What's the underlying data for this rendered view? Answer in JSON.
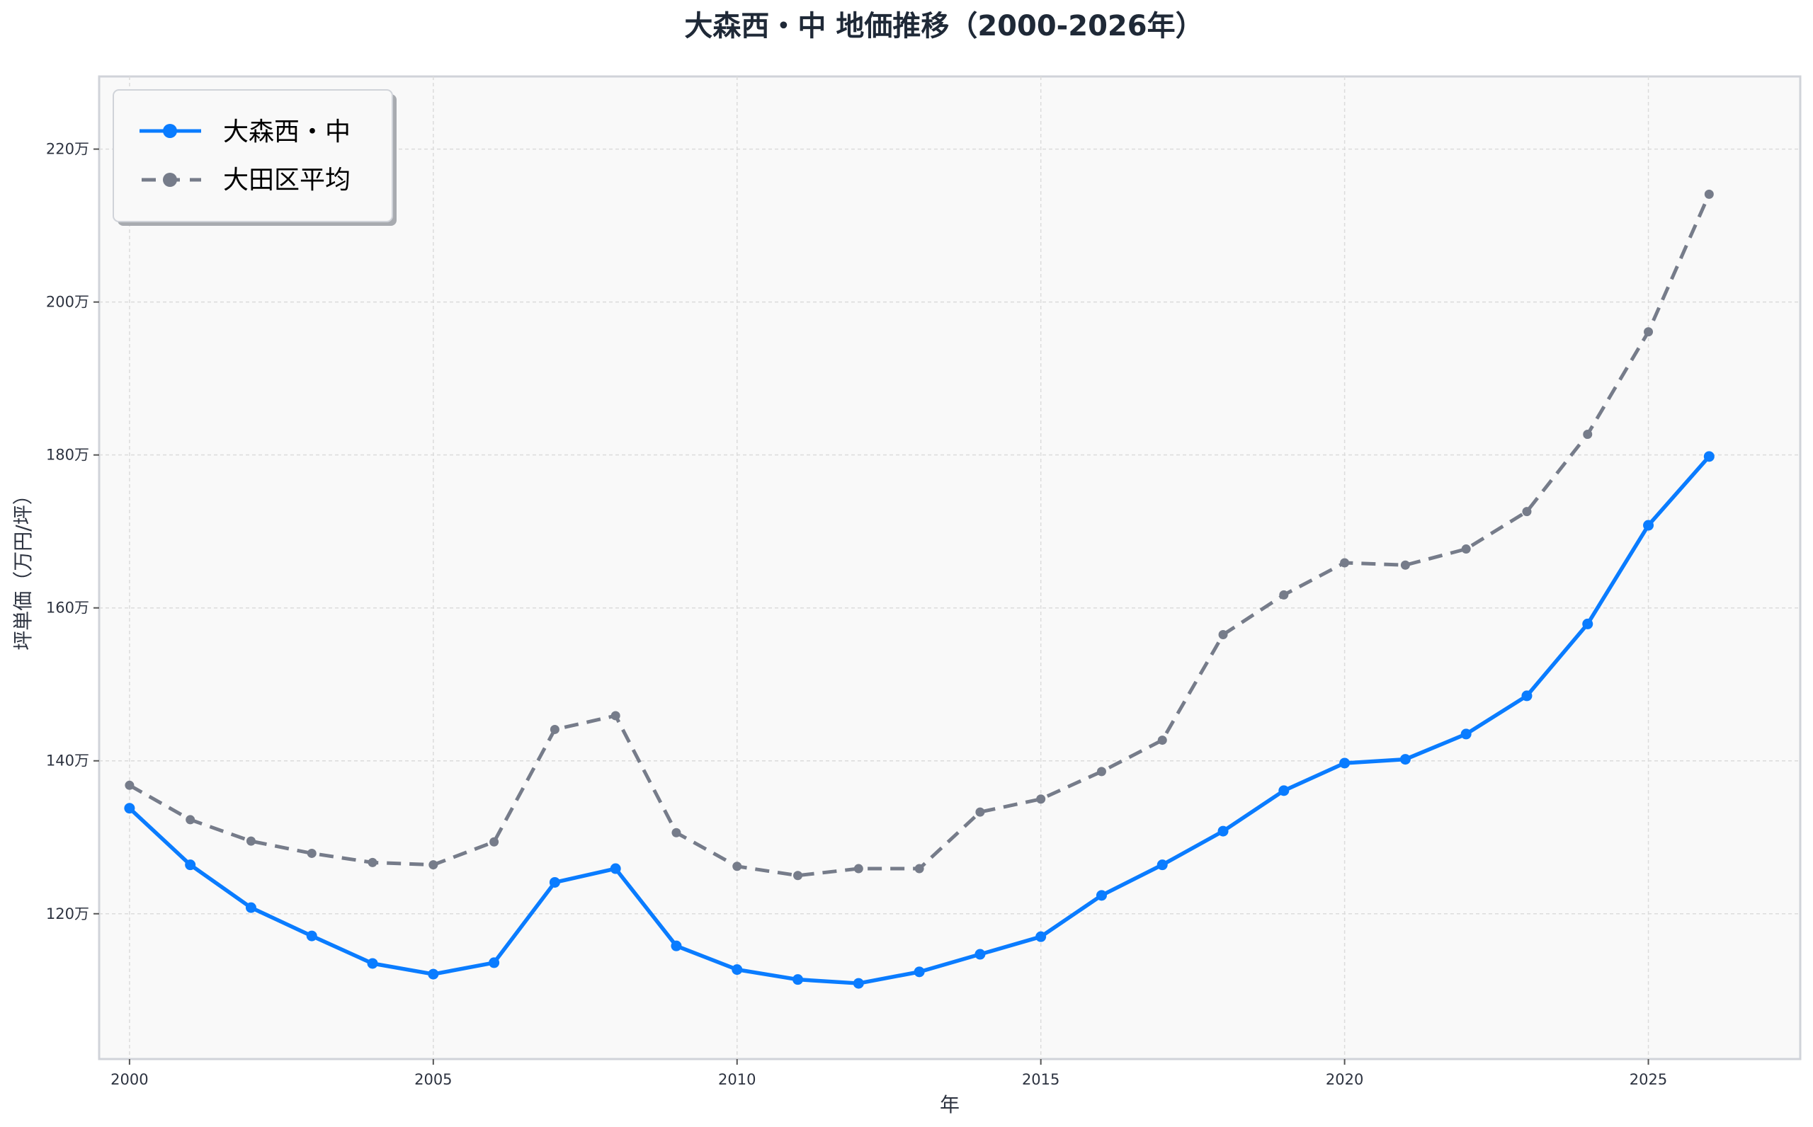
{
  "chart_data": {
    "type": "line",
    "title": "大森西・中 地価推移（2000-2026年）",
    "xlabel": "年",
    "ylabel": "坪単価（万円/坪）",
    "xlim": [
      1999.5,
      2027.5
    ],
    "ylim": [
      101,
      229.5
    ],
    "xticks": [
      2000,
      2005,
      2010,
      2015,
      2020,
      2025
    ],
    "xtick_labels": [
      "2000",
      "2005",
      "2010",
      "2015",
      "2020",
      "2025"
    ],
    "yticks": [
      120,
      140,
      160,
      180,
      200,
      220
    ],
    "ytick_labels": [
      "120万",
      "140万",
      "160万",
      "180万",
      "200万",
      "220万"
    ],
    "grid": true,
    "legend_position": "top-left",
    "background": "#f9f9f9",
    "x": [
      2000,
      2001,
      2002,
      2003,
      2004,
      2005,
      2006,
      2007,
      2008,
      2009,
      2010,
      2011,
      2012,
      2013,
      2014,
      2015,
      2016,
      2017,
      2018,
      2019,
      2020,
      2021,
      2022,
      2023,
      2024,
      2025,
      2026
    ],
    "series": [
      {
        "name": "大森西・中",
        "color": "#0a7cff",
        "style": "solid",
        "values": [
          133.8,
          126.4,
          120.8,
          117.1,
          113.5,
          112.1,
          113.6,
          124.1,
          125.9,
          115.8,
          112.7,
          111.4,
          110.9,
          112.4,
          114.7,
          117.0,
          122.4,
          126.4,
          130.8,
          136.1,
          139.7,
          140.2,
          143.5,
          148.5,
          157.9,
          170.8,
          179.8
        ]
      },
      {
        "name": "大田区平均",
        "color": "#767c8a",
        "style": "dashed",
        "values": [
          136.8,
          132.3,
          129.5,
          127.9,
          126.7,
          126.4,
          129.4,
          144.1,
          145.9,
          130.6,
          126.2,
          125.0,
          125.9,
          125.9,
          133.3,
          135.0,
          138.6,
          142.7,
          156.5,
          161.7,
          165.9,
          165.6,
          167.7,
          172.6,
          182.7,
          196.1,
          214.1
        ]
      }
    ]
  }
}
